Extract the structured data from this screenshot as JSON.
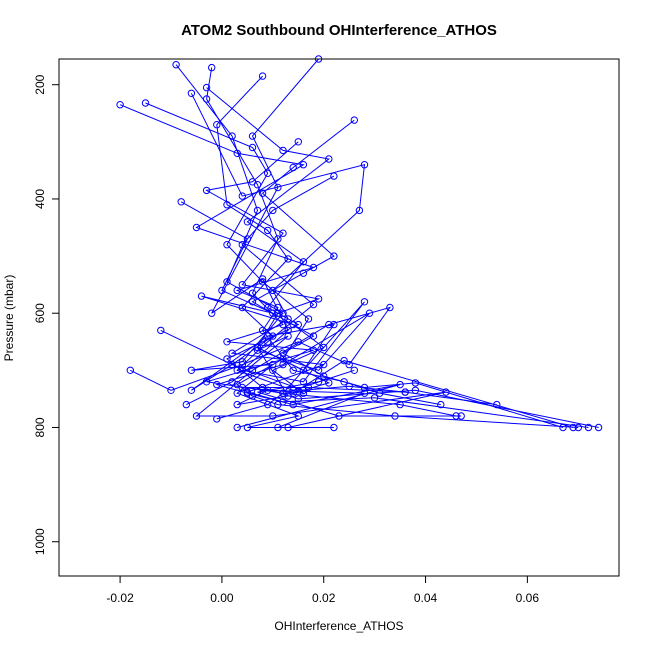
{
  "chart_data": {
    "type": "line",
    "title": "ATOM2 Southbound OHInterference_ATHOS",
    "xlabel": "OHInterference_ATHOS",
    "ylabel": "Pressure (mbar)",
    "xlim": [
      -0.032,
      0.078
    ],
    "ylim": [
      1060,
      155
    ],
    "y_reversed": true,
    "grid": false,
    "legend": "none",
    "color": "#0000ff",
    "x_ticks": [
      -0.02,
      0.0,
      0.02,
      0.04,
      0.06
    ],
    "x_tick_labels": [
      "-0.02",
      "0.00",
      "0.02",
      "0.04",
      "0.06"
    ],
    "y_ticks": [
      200,
      400,
      600,
      800,
      1000
    ],
    "y_tick_labels": [
      "200",
      "400",
      "600",
      "800",
      "1000"
    ],
    "series": [
      {
        "x": [
          -0.009,
          0.002,
          0.007,
          0.001,
          0.012,
          0.004,
          -0.006,
          0.01,
          0.003,
          0.015,
          0.005,
          0.022
        ],
        "y": [
          165,
          290,
          420,
          545,
          600,
          685,
          700,
          690,
          740,
          780,
          800,
          800
        ]
      },
      {
        "x": [
          -0.002,
          -0.003,
          0.007,
          0.011,
          0.006,
          0.012,
          0.001,
          0.018,
          -0.003,
          0.012,
          0.035,
          0.046
        ],
        "y": [
          170,
          225,
          375,
          470,
          565,
          620,
          650,
          665,
          720,
          740,
          760,
          780
        ]
      },
      {
        "x": [
          0.008,
          -0.001,
          0.001,
          0.009,
          0.013,
          0.004,
          0.01,
          0.002,
          0.016,
          0.025,
          0.036,
          0.054
        ],
        "y": [
          185,
          270,
          410,
          455,
          505,
          590,
          640,
          690,
          735,
          728,
          738,
          760
        ]
      },
      {
        "x": [
          -0.02,
          0.003,
          0.016,
          -0.005,
          0.018,
          0.003,
          0.011,
          0.008,
          0.014,
          0.024,
          0.031,
          0.043
        ],
        "y": [
          235,
          320,
          340,
          450,
          520,
          560,
          590,
          630,
          700,
          720,
          740,
          760
        ]
      },
      {
        "x": [
          -0.015,
          0.006,
          0.009,
          0.001,
          0.008,
          0.017,
          0.012,
          0.003,
          0.006,
          0.011,
          0.034,
          0.07
        ],
        "y": [
          232,
          310,
          355,
          480,
          545,
          610,
          680,
          725,
          745,
          760,
          780,
          800
        ]
      },
      {
        "x": [
          0.026,
          0.014,
          0.008,
          0.022,
          0.016,
          0.006,
          0.018,
          0.012,
          0.02,
          0.028,
          0.038,
          0.067
        ],
        "y": [
          262,
          345,
          390,
          500,
          530,
          580,
          640,
          670,
          710,
          730,
          722,
          800
        ]
      },
      {
        "x": [
          -0.003,
          0.012,
          0.021,
          0.005,
          0.016,
          0.009,
          0.015,
          0.001,
          0.008,
          0.015,
          0.038,
          0.074
        ],
        "y": [
          205,
          315,
          330,
          440,
          510,
          590,
          620,
          680,
          730,
          750,
          735,
          800
        ]
      },
      {
        "x": [
          -0.006,
          0.004,
          0.028,
          0.027,
          0.01,
          0.013,
          0.002,
          0.02,
          0.005,
          0.012,
          0.03,
          0.072
        ],
        "y": [
          215,
          395,
          340,
          420,
          560,
          610,
          670,
          690,
          738,
          755,
          748,
          800
        ]
      },
      {
        "x": [
          0.015,
          0.006,
          -0.003,
          0.012,
          0.004,
          0.019,
          0.011,
          0.007,
          0.021,
          0.014,
          0.024,
          0.069
        ],
        "y": [
          300,
          370,
          385,
          460,
          550,
          575,
          600,
          660,
          722,
          740,
          683,
          800
        ]
      },
      {
        "x": [
          -0.012,
          0.002,
          -0.006,
          0.009,
          0.022,
          0.016,
          0.007,
          0.013,
          0.003,
          0.009,
          0.028,
          0.011
        ],
        "y": [
          630,
          690,
          735,
          640,
          620,
          700,
          660,
          745,
          760,
          735,
          740,
          800
        ]
      },
      {
        "x": [
          -0.018,
          -0.01,
          0.004,
          0.015,
          0.025,
          0.033,
          0.021,
          0.006,
          -0.005,
          0.01,
          0.044,
          0.013
        ],
        "y": [
          700,
          735,
          690,
          650,
          690,
          590,
          620,
          700,
          780,
          780,
          738,
          800
        ]
      },
      {
        "x": [
          -0.007,
          0.002,
          0.013,
          0.007,
          0.019,
          0.029,
          0.012,
          -0.001,
          0.005,
          0.014,
          0.035,
          0.003
        ],
        "y": [
          760,
          720,
          640,
          665,
          700,
          600,
          690,
          725,
          740,
          760,
          725,
          800
        ]
      },
      {
        "x": [
          0.022,
          0.01,
          0.004,
          0.018,
          0.009,
          0.003,
          0.014,
          0.026,
          0.019,
          0.007,
          0.023,
          0.047
        ],
        "y": [
          360,
          420,
          480,
          585,
          650,
          700,
          735,
          700,
          720,
          738,
          780,
          780
        ]
      },
      {
        "x": [
          0.019,
          0.006,
          0.011,
          -0.002,
          0.008,
          0.013,
          0.004,
          0.016,
          0.028,
          0.012,
          0.009,
          -0.001
        ],
        "y": [
          155,
          290,
          380,
          600,
          540,
          630,
          700,
          720,
          580,
          740,
          760,
          785
        ]
      },
      {
        "x": [
          -0.008,
          0.005,
          0.0,
          0.01,
          -0.004,
          0.014,
          0.02,
          0.01,
          0.016,
          0.004,
          0.017,
          0.036
        ],
        "y": [
          405,
          470,
          560,
          600,
          570,
          620,
          660,
          700,
          740,
          730,
          730,
          738
        ]
      }
    ]
  }
}
